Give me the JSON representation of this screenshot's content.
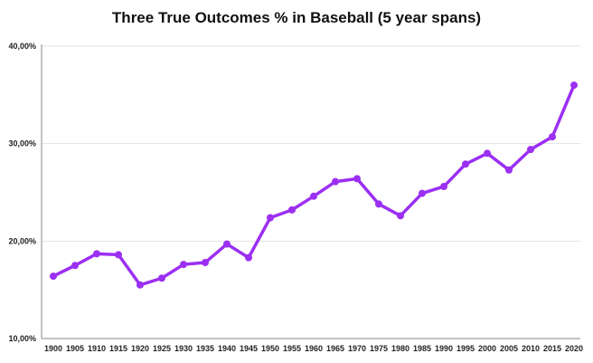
{
  "chart_data": {
    "type": "line",
    "title": "Three True Outcomes % in Baseball (5 year spans)",
    "xlabel": "",
    "ylabel": "",
    "x": [
      "1900",
      "1905",
      "1910",
      "1915",
      "1920",
      "1925",
      "1930",
      "1935",
      "1940",
      "1945",
      "1950",
      "1955",
      "1960",
      "1965",
      "1970",
      "1975",
      "1980",
      "1985",
      "1990",
      "1995",
      "2000",
      "2005",
      "2010",
      "2015",
      "2020"
    ],
    "series": [
      {
        "values": [
          16.4,
          17.5,
          18.7,
          18.6,
          15.5,
          16.2,
          17.6,
          17.8,
          19.7,
          18.3,
          22.4,
          23.2,
          24.6,
          26.1,
          26.4,
          23.8,
          22.6,
          24.9,
          25.6,
          27.9,
          29.0,
          27.3,
          29.4,
          30.7,
          36.0
        ]
      }
    ],
    "ylim": [
      10,
      40
    ],
    "yticks": [
      10,
      20,
      30,
      40
    ],
    "ytick_labels": [
      "10,00%",
      "20,00%",
      "30,00%",
      "40,00%"
    ],
    "grid": true,
    "legend": "none",
    "line_color": "#9b2ff2",
    "grid_color": "#e3e3e3",
    "axis_color": "#888888"
  }
}
